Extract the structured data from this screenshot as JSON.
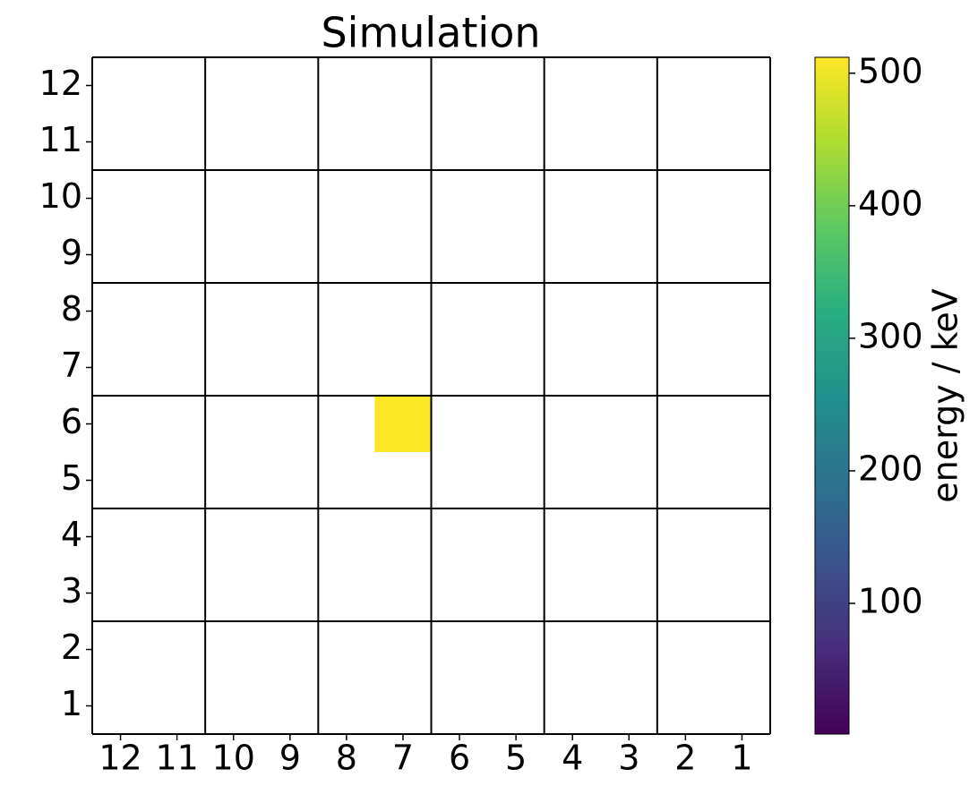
{
  "chart_data": {
    "type": "heatmap",
    "title": "Simulation",
    "x": [
      "12",
      "11",
      "10",
      "9",
      "8",
      "7",
      "6",
      "5",
      "4",
      "3",
      "2",
      "1"
    ],
    "y": [
      "1",
      "2",
      "3",
      "4",
      "5",
      "6",
      "7",
      "8",
      "9",
      "10",
      "11",
      "12"
    ],
    "values": [
      [
        null,
        null,
        null,
        null,
        null,
        null,
        null,
        null,
        null,
        null,
        null,
        null
      ],
      [
        null,
        null,
        null,
        null,
        null,
        null,
        null,
        null,
        null,
        null,
        null,
        null
      ],
      [
        null,
        null,
        null,
        null,
        null,
        null,
        null,
        null,
        null,
        null,
        null,
        null
      ],
      [
        null,
        null,
        null,
        null,
        null,
        null,
        null,
        null,
        null,
        null,
        null,
        null
      ],
      [
        null,
        null,
        null,
        null,
        null,
        null,
        null,
        null,
        null,
        null,
        null,
        null
      ],
      [
        null,
        null,
        null,
        null,
        null,
        511,
        null,
        null,
        null,
        null,
        null,
        null
      ],
      [
        null,
        null,
        null,
        null,
        null,
        null,
        null,
        null,
        null,
        null,
        null,
        null
      ],
      [
        null,
        null,
        null,
        null,
        null,
        null,
        null,
        null,
        null,
        null,
        null,
        null
      ],
      [
        null,
        null,
        null,
        null,
        null,
        null,
        null,
        null,
        null,
        null,
        null,
        null
      ],
      [
        null,
        null,
        null,
        null,
        null,
        null,
        null,
        null,
        null,
        null,
        null,
        null
      ],
      [
        null,
        null,
        null,
        null,
        null,
        null,
        null,
        null,
        null,
        null,
        null,
        null
      ],
      [
        null,
        null,
        null,
        null,
        null,
        null,
        null,
        null,
        null,
        null,
        null,
        null
      ]
    ],
    "colormap": "viridis",
    "colorbar_label": "energy / keV",
    "clim": [
      1.4,
      512
    ],
    "cticks": [
      100,
      200,
      300,
      400,
      500
    ]
  }
}
